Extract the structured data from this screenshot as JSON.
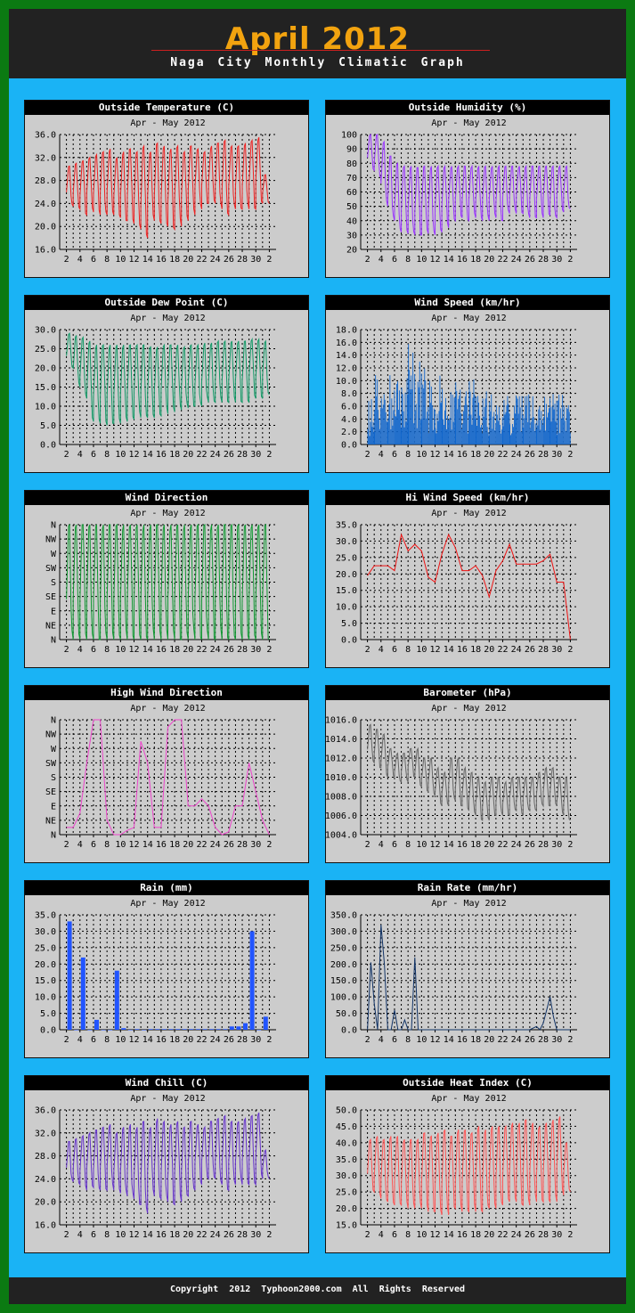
{
  "header": {
    "title": "April 2012",
    "subtitle": "Naga City Monthly Climatic Graph"
  },
  "footer": {
    "text": "Copyright 2012    Typhoon2000.com    All Rights Reserved"
  },
  "colors": {
    "frame": "#0b7a12",
    "panel_area": "#1ab3f5",
    "header_bg": "#222222",
    "title": "#f2a30f",
    "chart_bg": "#cccccc"
  },
  "chart_data": [
    {
      "id": "outside-temperature",
      "title": "Outside Temperature (C)",
      "subtitle": "Apr - May  2012",
      "type": "line",
      "color": "#ee2222",
      "grid": true,
      "ylim": [
        16,
        36
      ],
      "yticks": [
        "16.0",
        "20.0",
        "24.0",
        "28.0",
        "32.0",
        "36.0"
      ],
      "xticks": [
        "2",
        "4",
        "6",
        "8",
        "10",
        "12",
        "14",
        "16",
        "18",
        "20",
        "22",
        "24",
        "26",
        "28",
        "30",
        "2"
      ],
      "highs": [
        30.5,
        31,
        31.5,
        32,
        32.5,
        33,
        33.5,
        32,
        33,
        33.5,
        33,
        34,
        33,
        34.5,
        34,
        33.5,
        34,
        33,
        34,
        33.5,
        33,
        34,
        34.5,
        35,
        34,
        34,
        34.5,
        35,
        35.5,
        29
      ],
      "lows": [
        23.5,
        23,
        22,
        22.5,
        22,
        22,
        22,
        21.5,
        21,
        20.5,
        19.5,
        18,
        21,
        20.5,
        20,
        19.5,
        20,
        21,
        22,
        23,
        24,
        24,
        23,
        22,
        23,
        23,
        23,
        23,
        24,
        24
      ]
    },
    {
      "id": "outside-humidity",
      "title": "Outside Humidity (%)",
      "subtitle": "Apr - May  2012",
      "type": "line",
      "color": "#9933ff",
      "grid": true,
      "ylim": [
        20,
        100
      ],
      "yticks": [
        "20",
        "30",
        "40",
        "50",
        "60",
        "70",
        "80",
        "90",
        "100"
      ],
      "xticks": [
        "2",
        "4",
        "6",
        "8",
        "10",
        "12",
        "14",
        "16",
        "18",
        "20",
        "22",
        "24",
        "26",
        "28",
        "30",
        "2"
      ],
      "highs": [
        100,
        100,
        95,
        85,
        80,
        78,
        78,
        77,
        78,
        78,
        78,
        78,
        78,
        78,
        78,
        78,
        78,
        78,
        78,
        78,
        78,
        78,
        78,
        78,
        78,
        78,
        78,
        78,
        78,
        78
      ],
      "lows": [
        75,
        70,
        50,
        40,
        32,
        31,
        30,
        30,
        31,
        30,
        32,
        35,
        40,
        42,
        40,
        42,
        40,
        40,
        42,
        40,
        45,
        45,
        45,
        42,
        42,
        42,
        44,
        42,
        46,
        48
      ]
    },
    {
      "id": "outside-dew-point",
      "title": "Outside Dew Point (C)",
      "subtitle": "Apr - May  2012",
      "type": "line",
      "color": "#119966",
      "grid": true,
      "ylim": [
        0,
        30
      ],
      "yticks": [
        "0.0",
        "5.0",
        "10.0",
        "15.0",
        "20.0",
        "25.0",
        "30.0"
      ],
      "xticks": [
        "2",
        "4",
        "6",
        "8",
        "10",
        "12",
        "14",
        "16",
        "18",
        "20",
        "22",
        "24",
        "26",
        "28",
        "30",
        "2"
      ],
      "highs": [
        29,
        28.5,
        28,
        27,
        26,
        26,
        26,
        26,
        26,
        26,
        26,
        26,
        25.5,
        25.5,
        26,
        26,
        26,
        25.5,
        26,
        26,
        26.5,
        26.5,
        27,
        27,
        27,
        27,
        27,
        27.5,
        27.5,
        27
      ],
      "lows": [
        20,
        15,
        12,
        6,
        5.5,
        5,
        5.5,
        5.5,
        6,
        6.5,
        7,
        7,
        7,
        7.5,
        8,
        8.5,
        9,
        9.5,
        10,
        10,
        11,
        11,
        11,
        11,
        11,
        11,
        11,
        12,
        12,
        13
      ]
    },
    {
      "id": "wind-speed",
      "title": "Wind Speed (km/hr)",
      "subtitle": "Apr - May  2012",
      "type": "bar",
      "color": "#1166cc",
      "grid": true,
      "ylim": [
        0,
        18
      ],
      "yticks": [
        "0.0",
        "2.0",
        "4.0",
        "6.0",
        "8.0",
        "10.0",
        "12.0",
        "14.0",
        "16.0",
        "18.0"
      ],
      "xticks": [
        "2",
        "4",
        "6",
        "8",
        "10",
        "12",
        "14",
        "16",
        "18",
        "20",
        "22",
        "24",
        "26",
        "28",
        "30",
        "2"
      ],
      "highs": [
        8,
        11,
        9,
        11,
        10,
        12,
        16,
        14,
        13,
        10,
        11,
        9,
        9,
        10,
        9,
        12,
        8,
        9,
        8,
        8,
        9,
        8,
        8,
        8,
        8,
        8,
        8,
        8,
        8,
        8
      ],
      "lows": [
        0,
        0,
        0,
        0,
        0,
        0,
        0,
        0,
        0,
        0,
        0,
        0,
        0,
        0,
        0,
        0,
        0,
        0,
        0,
        0,
        0,
        0,
        0,
        0,
        0,
        0,
        0,
        0,
        0,
        0
      ]
    },
    {
      "id": "wind-direction",
      "title": "Wind Direction",
      "subtitle": "Apr - May  2012",
      "type": "line",
      "color": "#119933",
      "grid": true,
      "ylim": [
        0,
        8
      ],
      "yticks": [
        "N",
        "NE",
        "E",
        "SE",
        "S",
        "SW",
        "W",
        "NW",
        "N"
      ],
      "xticks": [
        "2",
        "4",
        "6",
        "8",
        "10",
        "12",
        "14",
        "16",
        "18",
        "20",
        "22",
        "24",
        "26",
        "28",
        "30",
        "2"
      ],
      "highs": [
        8,
        8,
        8,
        8,
        8,
        8,
        8,
        8,
        8,
        8,
        8,
        8,
        8,
        8,
        8,
        8,
        8,
        8,
        8,
        8,
        8,
        8,
        8,
        8,
        8,
        8,
        8,
        8,
        8,
        8
      ],
      "lows": [
        0,
        0,
        0,
        0,
        0,
        0,
        0,
        0,
        0,
        0,
        0,
        0,
        0,
        0,
        0,
        0,
        0,
        0,
        0,
        0,
        0,
        0,
        0,
        0,
        0,
        0,
        0,
        0,
        0,
        0
      ]
    },
    {
      "id": "hi-wind-speed",
      "title": "Hi Wind Speed (km/hr)",
      "subtitle": "Apr - May  2012",
      "type": "line",
      "color": "#ee1111",
      "grid": true,
      "ylim": [
        0,
        35
      ],
      "yticks": [
        "0.0",
        "5.0",
        "10.0",
        "15.0",
        "20.0",
        "25.0",
        "30.0",
        "35.0"
      ],
      "xticks": [
        "2",
        "4",
        "6",
        "8",
        "10",
        "12",
        "14",
        "16",
        "18",
        "20",
        "22",
        "24",
        "26",
        "28",
        "30",
        "2"
      ],
      "x": [
        1,
        2,
        3,
        4,
        5,
        6,
        7,
        8,
        9,
        10,
        11,
        12,
        13,
        14,
        15,
        16,
        17,
        18,
        19,
        20,
        21,
        22,
        23,
        24,
        25,
        26,
        27,
        28,
        29,
        30,
        31
      ],
      "values": [
        19.5,
        22.5,
        22.5,
        22.5,
        21,
        32,
        27,
        29,
        27,
        19,
        17.5,
        26,
        32,
        28,
        21,
        21,
        22.5,
        19.5,
        13,
        21,
        24,
        29,
        23,
        23,
        23,
        23,
        24,
        26,
        17.5,
        17.5,
        0
      ]
    },
    {
      "id": "high-wind-direction",
      "title": "High Wind Direction",
      "subtitle": "Apr - May  2012",
      "type": "line",
      "color": "#ee44cc",
      "grid": true,
      "ylim": [
        0,
        8
      ],
      "yticks": [
        "N",
        "NE",
        "E",
        "SE",
        "S",
        "SW",
        "W",
        "NW",
        "N"
      ],
      "xticks": [
        "2",
        "4",
        "6",
        "8",
        "10",
        "12",
        "14",
        "16",
        "18",
        "20",
        "22",
        "24",
        "26",
        "28",
        "30",
        "2"
      ],
      "x": [
        1,
        2,
        3,
        4,
        5,
        6,
        7,
        8,
        9,
        10,
        11,
        12,
        13,
        14,
        15,
        16,
        17,
        18,
        19,
        20,
        21,
        22,
        23,
        24,
        25,
        26,
        27,
        28,
        29,
        30,
        31
      ],
      "values": [
        0.5,
        0.5,
        1.5,
        5,
        8,
        8,
        1,
        0,
        0,
        0.3,
        0.5,
        6.5,
        5,
        0.5,
        0.5,
        7.5,
        8,
        8,
        2,
        2,
        2.5,
        2,
        0.5,
        0,
        0.2,
        2,
        2,
        5,
        3,
        1,
        0
      ]
    },
    {
      "id": "barometer",
      "title": "Barometer (hPa)",
      "subtitle": "Apr - May  2012",
      "type": "line",
      "color": "#666666",
      "grid": true,
      "ylim": [
        1004,
        1016
      ],
      "yticks": [
        "1004.0",
        "1006.0",
        "1008.0",
        "1010.0",
        "1012.0",
        "1014.0",
        "1016.0"
      ],
      "xticks": [
        "2",
        "4",
        "6",
        "8",
        "10",
        "12",
        "14",
        "16",
        "18",
        "20",
        "22",
        "24",
        "26",
        "28",
        "30",
        "2"
      ],
      "highs": [
        1015.5,
        1015,
        1014.5,
        1013,
        1012.5,
        1012.5,
        1013,
        1013,
        1012,
        1012,
        1011,
        1010.5,
        1012,
        1012,
        1011,
        1010.5,
        1010,
        1009.5,
        1010,
        1010,
        1009.5,
        1010,
        1010,
        1010,
        1010,
        1010.5,
        1011,
        1011,
        1010,
        1010
      ],
      "lows": [
        1011.5,
        1011,
        1010,
        1010,
        1009.5,
        1009.5,
        1010,
        1009,
        1008.5,
        1008,
        1007,
        1007,
        1007.5,
        1007,
        1006.5,
        1006,
        1005.5,
        1005.5,
        1006,
        1006,
        1006,
        1006.5,
        1006,
        1006.5,
        1006.5,
        1007,
        1007,
        1007,
        1006,
        1005.5
      ]
    },
    {
      "id": "rain",
      "title": "Rain (mm)",
      "subtitle": "Apr - May  2012",
      "type": "bar",
      "color": "#2255ff",
      "grid": true,
      "ylim": [
        0,
        35
      ],
      "yticks": [
        "0.0",
        "5.0",
        "10.0",
        "15.0",
        "20.0",
        "25.0",
        "30.0",
        "35.0"
      ],
      "xticks": [
        "2",
        "4",
        "6",
        "8",
        "10",
        "12",
        "14",
        "16",
        "18",
        "20",
        "22",
        "24",
        "26",
        "28",
        "30",
        "2"
      ],
      "x": [
        1,
        2,
        3,
        4,
        5,
        6,
        7,
        8,
        9,
        10,
        11,
        12,
        13,
        14,
        15,
        16,
        17,
        18,
        19,
        20,
        21,
        22,
        23,
        24,
        25,
        26,
        27,
        28,
        29,
        30
      ],
      "values": [
        33,
        0,
        22,
        0,
        3,
        0,
        0,
        18,
        0.5,
        0,
        0.2,
        0,
        0.2,
        0.2,
        0.2,
        0.2,
        0.2,
        0.2,
        0.2,
        0.2,
        0.2,
        0.2,
        0.2,
        0.2,
        1,
        1,
        2,
        30,
        0,
        4
      ]
    },
    {
      "id": "rain-rate",
      "title": "Rain Rate (mm/hr)",
      "subtitle": "Apr - May  2012",
      "type": "line",
      "color": "#113366",
      "grid": true,
      "ylim": [
        0,
        350
      ],
      "yticks": [
        "0.0",
        "50.0",
        "100.0",
        "150.0",
        "200.0",
        "250.0",
        "300.0",
        "350.0"
      ],
      "xticks": [
        "2",
        "4",
        "6",
        "8",
        "10",
        "12",
        "14",
        "16",
        "18",
        "20",
        "22",
        "24",
        "26",
        "28",
        "30",
        "2"
      ],
      "x": [
        1,
        1.5,
        2,
        2.5,
        3,
        3.5,
        4,
        4.5,
        5,
        5.5,
        6,
        6.5,
        7,
        7.5,
        8,
        8.5,
        9,
        9.5,
        10,
        11,
        12,
        13,
        14,
        15,
        16,
        17,
        18,
        19,
        20,
        21,
        22,
        23,
        24,
        25,
        26,
        26.5,
        27,
        27.5,
        28,
        28.5,
        29,
        30,
        31
      ],
      "values": [
        0,
        205,
        80,
        0,
        320,
        200,
        0,
        0,
        60,
        0,
        0,
        30,
        0,
        0,
        220,
        0,
        0,
        0,
        0,
        0,
        0,
        0,
        0,
        0,
        0,
        0,
        0,
        0,
        0,
        0,
        0,
        0,
        0,
        0,
        10,
        0,
        20,
        60,
        100,
        40,
        0,
        0,
        0
      ]
    },
    {
      "id": "wind-chill",
      "title": "Wind Chill (C)",
      "subtitle": "Apr - May  2012",
      "type": "line",
      "color": "#6633cc",
      "grid": true,
      "ylim": [
        16,
        36
      ],
      "yticks": [
        "16.0",
        "20.0",
        "24.0",
        "28.0",
        "32.0",
        "36.0"
      ],
      "xticks": [
        "2",
        "4",
        "6",
        "8",
        "10",
        "12",
        "14",
        "16",
        "18",
        "20",
        "22",
        "24",
        "26",
        "28",
        "30",
        "2"
      ],
      "highs": [
        30.5,
        31,
        31.5,
        32,
        32.5,
        33,
        33.5,
        32,
        33,
        33.5,
        33,
        34,
        33,
        34.5,
        34,
        33.5,
        34,
        33,
        34,
        33.5,
        33,
        34,
        34.5,
        35,
        34,
        34,
        34.5,
        35,
        35.5,
        29
      ],
      "lows": [
        23.5,
        23,
        22,
        22.5,
        22,
        22,
        22,
        21.5,
        21,
        20.5,
        19.5,
        18,
        21,
        20.5,
        20,
        19.5,
        20,
        21,
        22,
        23,
        24,
        24,
        23,
        22,
        23,
        23,
        23,
        23,
        24,
        24
      ]
    },
    {
      "id": "outside-heat-index",
      "title": "Outside Heat Index (C)",
      "subtitle": "Apr - May  2012",
      "type": "line",
      "color": "#ff5555",
      "grid": true,
      "ylim": [
        15,
        50
      ],
      "yticks": [
        "15.0",
        "20.0",
        "25.0",
        "30.0",
        "35.0",
        "40.0",
        "45.0",
        "50.0"
      ],
      "xticks": [
        "2",
        "4",
        "6",
        "8",
        "10",
        "12",
        "14",
        "16",
        "18",
        "20",
        "22",
        "24",
        "26",
        "28",
        "30",
        "2"
      ],
      "highs": [
        41,
        42,
        41,
        42,
        42,
        41,
        41,
        41,
        43,
        42,
        43,
        44,
        42,
        44,
        44,
        43,
        45,
        44,
        45,
        45,
        45,
        46,
        46,
        47,
        46,
        45,
        46,
        47,
        48,
        40
      ],
      "lows": [
        25,
        23,
        22,
        21,
        21,
        20,
        20,
        20,
        19,
        19,
        18,
        18,
        20,
        19,
        19,
        19,
        19,
        20,
        20,
        21,
        22,
        22,
        21,
        21,
        22,
        22,
        22,
        22,
        24,
        25
      ]
    }
  ]
}
